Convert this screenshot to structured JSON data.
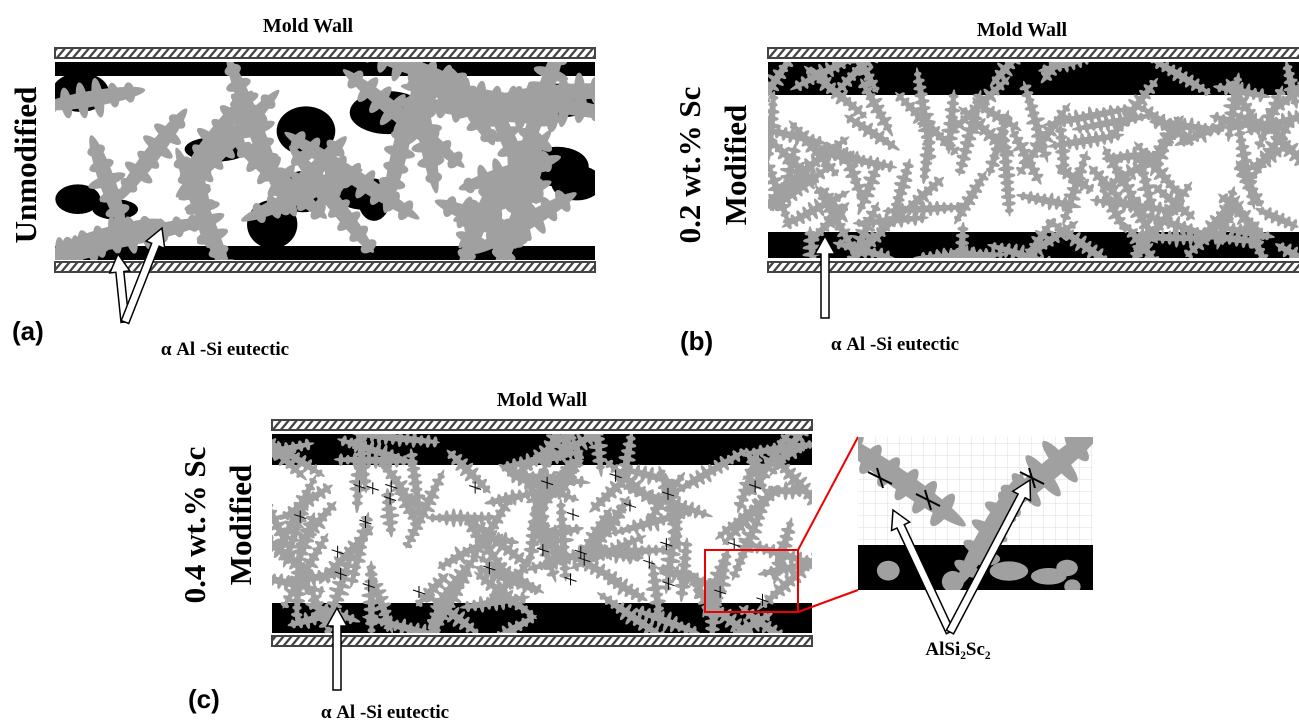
{
  "panels": [
    {
      "title": "Mold Wall",
      "side_label": [
        "Unmodified"
      ],
      "label": "(a)",
      "annotation": "α Al -Si eutectic"
    },
    {
      "title": "Mold Wall",
      "side_label": [
        "0.2 wt.% Sc",
        "Modified"
      ],
      "label": "(b)",
      "annotation": "α Al -Si eutectic"
    },
    {
      "title": "Mold Wall",
      "side_label": [
        "0.4 wt.% Sc",
        "Modified"
      ],
      "label": "(c)",
      "annotation": "α Al -Si eutectic"
    }
  ],
  "inset": {
    "annotation": "AlSi₂Sc₂"
  }
}
